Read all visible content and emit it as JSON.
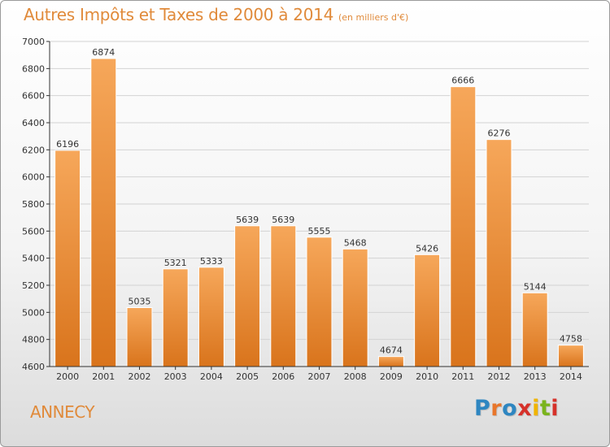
{
  "header": {
    "title": "Autres Impôts et Taxes de 2000 à 2014",
    "subtitle": "(en milliers d'€)"
  },
  "footer": {
    "city": "ANNECY",
    "logo": {
      "letters": [
        "P",
        "r",
        "o",
        "x",
        "i",
        "t",
        "i"
      ],
      "colors": [
        "#2e86c1",
        "#e8762b",
        "#2e86c1",
        "#d6312a",
        "#f0b400",
        "#7ab41d",
        "#d6312a"
      ]
    }
  },
  "colors": {
    "bar_light": "#f6a75a",
    "bar_dark": "#d9741c",
    "accent": "#e08a3a",
    "grid": "#d3d3d3",
    "axis": "#333333"
  },
  "chart_data": {
    "type": "bar",
    "categories": [
      "2000",
      "2001",
      "2002",
      "2003",
      "2004",
      "2005",
      "2006",
      "2007",
      "2008",
      "2009",
      "2010",
      "2011",
      "2012",
      "2013",
      "2014"
    ],
    "values": [
      6196,
      6874,
      5035,
      5321,
      5333,
      5639,
      5639,
      5555,
      5468,
      4674,
      5426,
      6666,
      6276,
      5144,
      4758
    ],
    "data_labels": [
      "6196",
      "6874",
      "5035",
      "5321",
      "5333",
      "5639",
      "5639",
      "5555",
      "5468",
      "4674",
      "5426",
      "6666",
      "6276",
      "5144",
      "4758"
    ],
    "title": "Autres Impôts et Taxes de 2000 à 2014",
    "subtitle": "(en milliers d'€)",
    "xlabel": "",
    "ylabel": "",
    "ylim": [
      4600,
      7000
    ],
    "yticks": [
      4600,
      4800,
      5000,
      5200,
      5400,
      5600,
      5800,
      6000,
      6200,
      6400,
      6600,
      6800,
      7000
    ],
    "grid": true
  }
}
